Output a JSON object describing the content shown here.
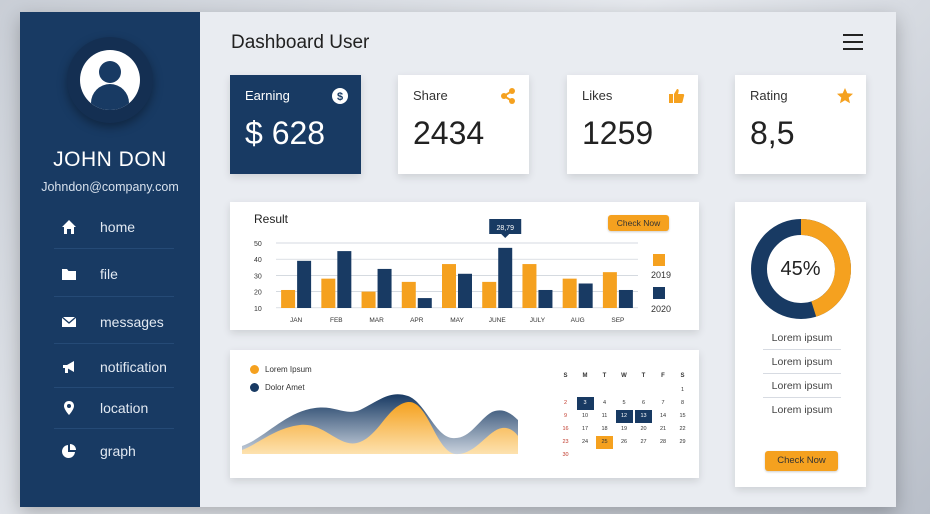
{
  "colors": {
    "navy": "#183a63",
    "orange": "#f5a11f",
    "background": "#e9ecf1"
  },
  "header": {
    "title": "Dashboard User",
    "menu_icon": "hamburger-menu-icon"
  },
  "user": {
    "name": "JOHN DON",
    "email": "Johndon@company.com",
    "avatar_icon": "user-avatar-icon"
  },
  "sidebar": {
    "items": [
      {
        "label": "home",
        "icon": "home-icon"
      },
      {
        "label": "file",
        "icon": "folder-icon"
      },
      {
        "label": "messages",
        "icon": "envelope-icon"
      },
      {
        "label": "notification",
        "icon": "megaphone-icon"
      },
      {
        "label": "location",
        "icon": "map-pin-icon"
      },
      {
        "label": "graph",
        "icon": "pie-chart-icon"
      }
    ]
  },
  "stats": [
    {
      "label": "Earning",
      "value": "$ 628",
      "icon": "dollar-icon"
    },
    {
      "label": "Share",
      "value": "2434",
      "icon": "share-icon"
    },
    {
      "label": "Likes",
      "value": "1259",
      "icon": "thumbs-up-icon"
    },
    {
      "label": "Rating",
      "value": "8,5",
      "icon": "star-icon"
    }
  ],
  "result": {
    "title": "Result",
    "button": "Check Now",
    "tooltip": "28,79"
  },
  "chart_data": [
    {
      "type": "bar",
      "title": "Result",
      "categories": [
        "JAN",
        "FEB",
        "MAR",
        "APR",
        "MAY",
        "JUNE",
        "JULY",
        "AUG",
        "SEP"
      ],
      "yticks": [
        10,
        20,
        30,
        40,
        50
      ],
      "ylim": [
        0,
        50
      ],
      "grid": true,
      "legend": "right",
      "series": [
        {
          "name": "2019",
          "color": "#f5a11f",
          "values": [
            11,
            18,
            10,
            16,
            27,
            16,
            27,
            18,
            22
          ]
        },
        {
          "name": "2020",
          "color": "#183a63",
          "values": [
            29,
            35,
            24,
            6,
            21,
            37,
            11,
            15,
            11
          ]
        }
      ],
      "annotation": {
        "category": "JUNE",
        "text": "28,79"
      }
    },
    {
      "type": "area",
      "series": [
        {
          "name": "Lorem Ipsum",
          "color": "#f5a11f"
        },
        {
          "name": "Dolor Amet",
          "color": "#183a63"
        }
      ]
    },
    {
      "type": "pie",
      "values": [
        45,
        55
      ],
      "label": "45%",
      "colors": [
        "#f5a11f",
        "#183a63"
      ]
    }
  ],
  "area": {
    "legend": [
      {
        "label": "Lorem Ipsum",
        "color": "#f5a11f"
      },
      {
        "label": "Dolor Amet",
        "color": "#183a63"
      }
    ]
  },
  "calendar": {
    "weekdays": [
      "S",
      "M",
      "T",
      "W",
      "T",
      "F",
      "S"
    ],
    "rows": [
      [
        "",
        "",
        "",
        "",
        "",
        "",
        "1"
      ],
      [
        "2",
        "3",
        "4",
        "5",
        "6",
        "7",
        "8"
      ],
      [
        "9",
        "10",
        "11",
        "12",
        "13",
        "14",
        "15"
      ],
      [
        "16",
        "17",
        "18",
        "19",
        "20",
        "21",
        "22"
      ],
      [
        "23",
        "24",
        "25",
        "26",
        "27",
        "28",
        "29"
      ],
      [
        "30",
        "",
        "",
        "",
        "",
        "",
        ""
      ]
    ],
    "highlight_navy": [
      "3",
      "12",
      "13"
    ],
    "highlight_orange": [
      "25"
    ]
  },
  "donut": {
    "label": "45%",
    "items": [
      "Lorem ipsum",
      "Lorem ipsum",
      "Lorem ipsum",
      "Lorem ipsum"
    ],
    "button": "Check Now"
  }
}
